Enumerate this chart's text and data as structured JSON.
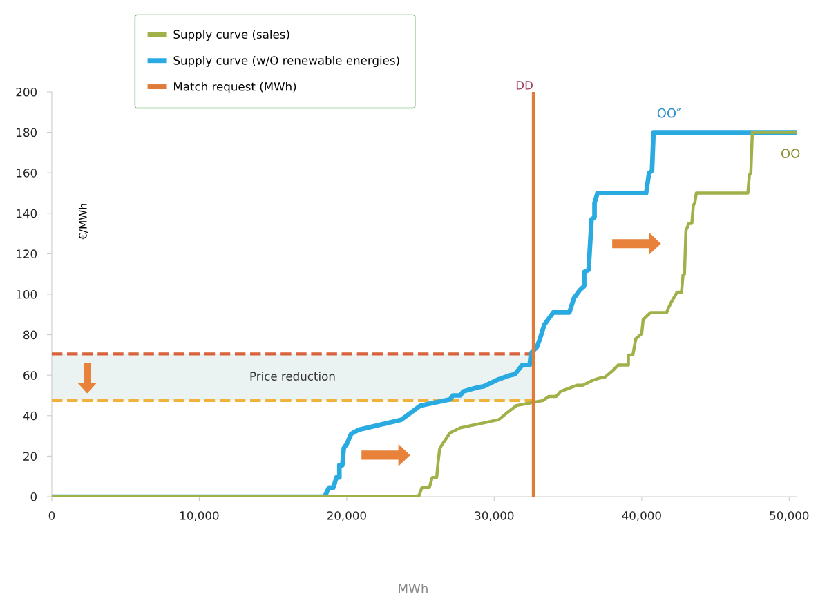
{
  "chart_data": {
    "type": "line",
    "ylabel": "€/MWh",
    "xlim": [
      0,
      50500
    ],
    "ylim": [
      0,
      200
    ],
    "xticks": [
      0,
      {
        "value": 10000,
        "label": "10,000"
      },
      {
        "value": 20000,
        "label": "20,000"
      },
      {
        "value": 30000,
        "label": "30,000"
      },
      {
        "value": 40000,
        "label": "40,000"
      },
      {
        "value": 50000,
        "label": "50,000"
      }
    ],
    "yticks": [
      0,
      20,
      40,
      60,
      80,
      100,
      120,
      140,
      160,
      180,
      200
    ],
    "grid": false,
    "legend": "top left",
    "marker": "none",
    "line_style": "solid",
    "series": [
      {
        "name": "Supply curve (sales)",
        "color": "#a2b04a",
        "x": [
          0,
          24500,
          24900,
          25100,
          25600,
          25800,
          26100,
          26200,
          26300,
          26400,
          27000,
          27700,
          30300,
          30800,
          31500,
          32600,
          33300,
          33700,
          34200,
          34500,
          35600,
          36000,
          36700,
          37100,
          37500,
          38000,
          38400,
          39100,
          39100,
          39400,
          39600,
          40000,
          40100,
          40600,
          41700,
          41800,
          42000,
          42400,
          42700,
          42800,
          42900,
          43000,
          43200,
          43400,
          43500,
          43600,
          43700,
          47200,
          47300,
          47400,
          47500,
          50500
        ],
        "values": [
          0,
          0,
          0.5,
          4.5,
          4.5,
          9.5,
          9.5,
          17.5,
          23.5,
          25,
          31.5,
          34,
          38,
          41,
          45,
          46.5,
          47.5,
          49.5,
          49.5,
          52,
          55,
          55,
          57.5,
          58.5,
          59,
          62,
          65,
          65,
          70,
          70,
          78,
          80.5,
          87.5,
          91,
          91,
          93,
          96,
          101,
          101,
          109.5,
          110,
          131.5,
          135,
          135,
          144,
          145,
          150,
          150,
          159,
          160,
          180,
          180
        ]
      },
      {
        "name": "Supply curve (w/O renewable energies)",
        "color": "#29abe2",
        "x": [
          0,
          17800,
          18500,
          18800,
          19100,
          19300,
          19500,
          19500,
          19700,
          19800,
          20000,
          20300,
          20800,
          23700,
          25000,
          27000,
          27200,
          27700,
          27900,
          28900,
          29300,
          30300,
          31100,
          31400,
          31900,
          32400,
          32500,
          32900,
          33100,
          33400,
          34000,
          35100,
          35400,
          35800,
          36100,
          36100,
          36400,
          36600,
          36800,
          36800,
          37000,
          40300,
          40500,
          40700,
          40800,
          50500
        ],
        "values": [
          0,
          0,
          0,
          4.5,
          4.5,
          9.5,
          9.5,
          15.5,
          15.5,
          24,
          26,
          31,
          33,
          38,
          45,
          48,
          50,
          50,
          52,
          54,
          54.5,
          58,
          60,
          60.5,
          65,
          65,
          71,
          74,
          78,
          85,
          91,
          91,
          98,
          102,
          104,
          111,
          112,
          137,
          138,
          145,
          150,
          150,
          160,
          161,
          180,
          180
        ]
      },
      {
        "name": "Match request (MWh)",
        "color": "#e07b39",
        "x": [
          32650,
          32650
        ],
        "values": [
          0,
          200
        ]
      }
    ],
    "ref_lines": [
      {
        "axis": "y",
        "value": 70.5,
        "color": "#d9623a",
        "line_style": "dashed"
      },
      {
        "axis": "y",
        "value": 47.5,
        "color": "#f0b23a",
        "line_style": "dashed"
      }
    ],
    "bands": [
      {
        "axis": "y",
        "from": 47.5,
        "to": 70.5,
        "label": "Price reduction",
        "color": "#eaf3f1"
      }
    ],
    "annotations": [
      {
        "text": "DD",
        "x": 32650,
        "y": 200
      },
      "OO″",
      "OO",
      "MWh"
    ]
  }
}
